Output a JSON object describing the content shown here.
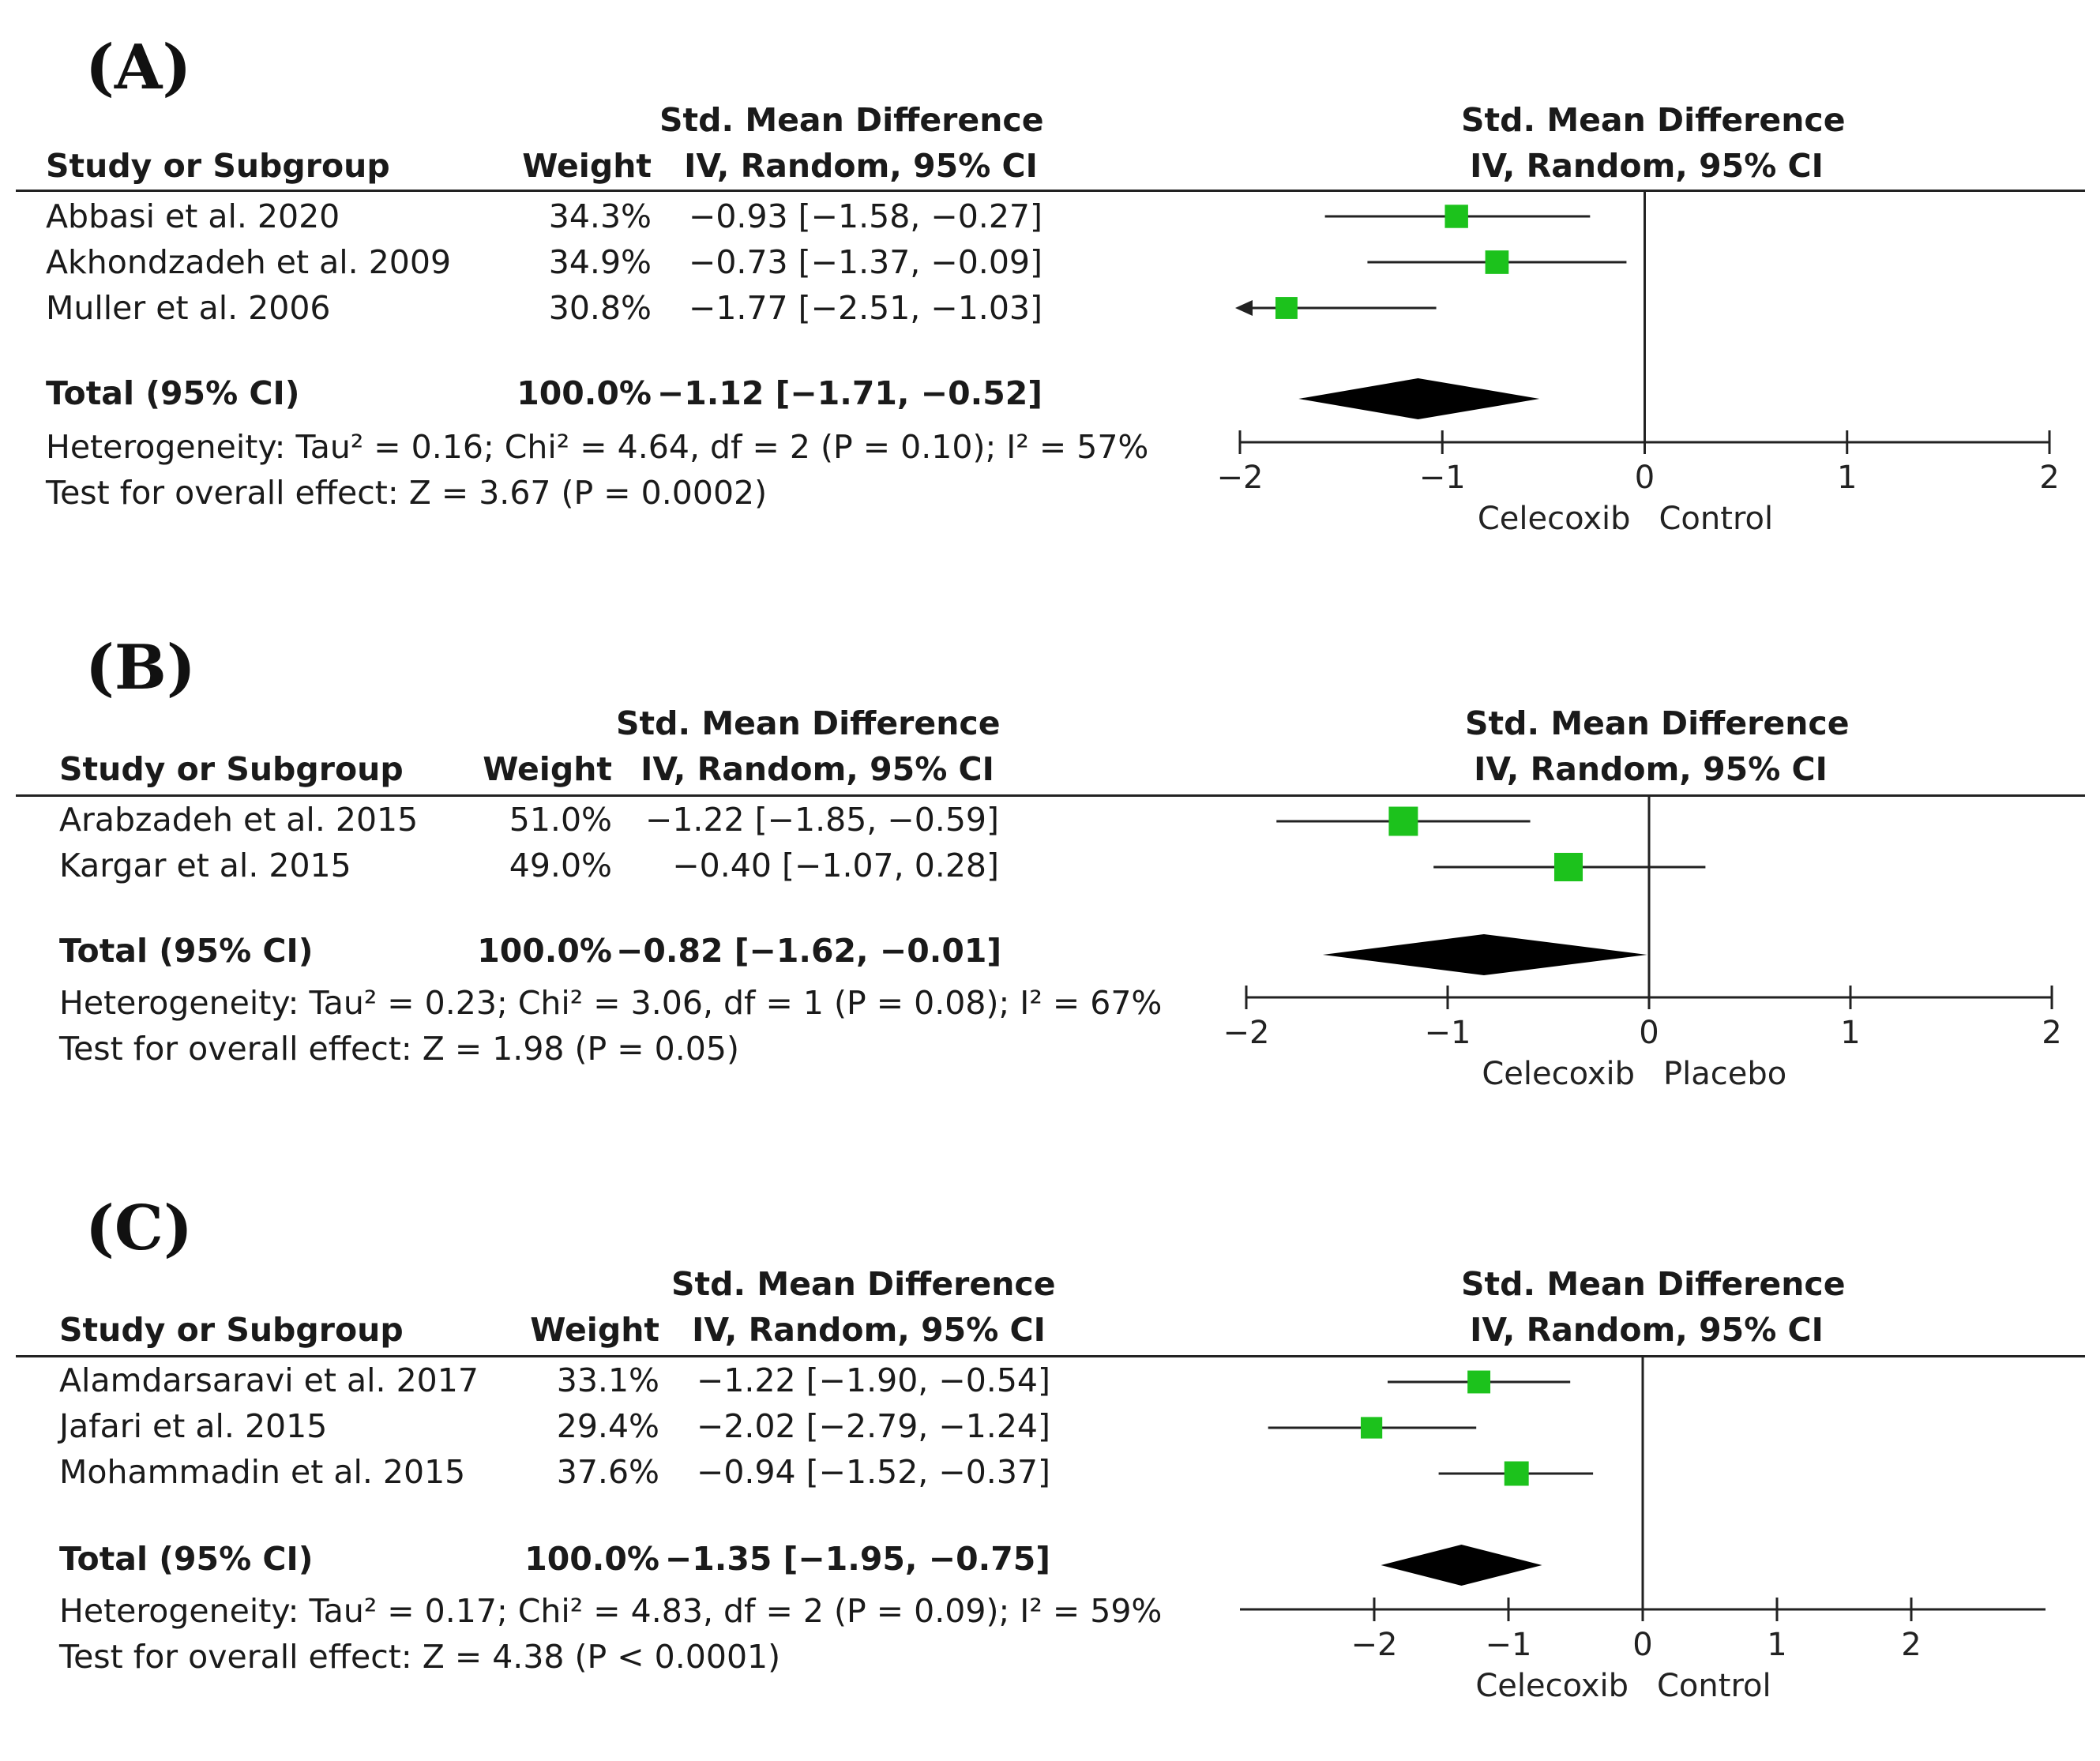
{
  "headers": {
    "study": "Study or Subgroup",
    "weight": "Weight",
    "smd_line1": "Std. Mean Difference",
    "smd_line2": "IV, Random, 95% CI"
  },
  "chart_data": [
    {
      "type": "forest",
      "panel_label": "(A)",
      "studies": [
        {
          "name": "Abbasi et al. 2020",
          "weight": "34.3%",
          "ci_text": "−0.93 [−1.58, −0.27]",
          "est": -0.93,
          "lo": -1.58,
          "hi": -0.27,
          "w": 34.3
        },
        {
          "name": "Akhondzadeh et al. 2009",
          "weight": "34.9%",
          "ci_text": "−0.73 [−1.37, −0.09]",
          "est": -0.73,
          "lo": -1.37,
          "hi": -0.09,
          "w": 34.9
        },
        {
          "name": "Muller et al. 2006",
          "weight": "30.8%",
          "ci_text": "−1.77 [−2.51, −1.03]",
          "est": -1.77,
          "lo": -2.51,
          "hi": -1.03,
          "w": 30.8
        }
      ],
      "total": {
        "label": "Total (95% CI)",
        "weight": "100.0%",
        "ci_text": "−1.12 [−1.71, −0.52]",
        "est": -1.12,
        "lo": -1.71,
        "hi": -0.52
      },
      "heterogeneity": "Heterogeneity: Tau² = 0.16; Chi² = 4.64, df = 2 (P = 0.10); I² = 57%",
      "overall": "Test for overall effect: Z = 3.67 (P = 0.0002)",
      "xlim": [
        -2,
        2
      ],
      "ticks": [
        -2,
        -1,
        0,
        1,
        2
      ],
      "tick_labels": [
        "−2",
        "−1",
        "0",
        "1",
        "2"
      ],
      "favours_left": "Celecoxib",
      "favours_right": "Control"
    },
    {
      "type": "forest",
      "panel_label": "(B)",
      "studies": [
        {
          "name": "Arabzadeh et al. 2015",
          "weight": "51.0%",
          "ci_text": "−1.22 [−1.85, −0.59]",
          "est": -1.22,
          "lo": -1.85,
          "hi": -0.59,
          "w": 51.0
        },
        {
          "name": "Kargar et al. 2015",
          "weight": "49.0%",
          "ci_text": "−0.40 [−1.07, 0.28]",
          "est": -0.4,
          "lo": -1.07,
          "hi": 0.28,
          "w": 49.0
        }
      ],
      "total": {
        "label": "Total (95% CI)",
        "weight": "100.0%",
        "ci_text": "−0.82 [−1.62, −0.01]",
        "est": -0.82,
        "lo": -1.62,
        "hi": -0.01
      },
      "heterogeneity": "Heterogeneity: Tau² = 0.23; Chi² = 3.06, df = 1 (P = 0.08); I² = 67%",
      "overall": "Test for overall effect: Z = 1.98 (P = 0.05)",
      "xlim": [
        -2,
        2
      ],
      "ticks": [
        -2,
        -1,
        0,
        1,
        2
      ],
      "tick_labels": [
        "−2",
        "−1",
        "0",
        "1",
        "2"
      ],
      "favours_left": "Celecoxib",
      "favours_right": "Placebo"
    },
    {
      "type": "forest",
      "panel_label": "(C)",
      "studies": [
        {
          "name": "Alamdarsaravi et al. 2017",
          "weight": "33.1%",
          "ci_text": "−1.22 [−1.90, −0.54]",
          "est": -1.22,
          "lo": -1.9,
          "hi": -0.54,
          "w": 33.1
        },
        {
          "name": "Jafari et al. 2015",
          "weight": "29.4%",
          "ci_text": "−2.02 [−2.79, −1.24]",
          "est": -2.02,
          "lo": -2.79,
          "hi": -1.24,
          "w": 29.4
        },
        {
          "name": "Mohammadin et al. 2015",
          "weight": "37.6%",
          "ci_text": "−0.94 [−1.52, −0.37]",
          "est": -0.94,
          "lo": -1.52,
          "hi": -0.37,
          "w": 37.6
        }
      ],
      "total": {
        "label": "Total (95% CI)",
        "weight": "100.0%",
        "ci_text": "−1.35 [−1.95, −0.75]",
        "est": -1.35,
        "lo": -1.95,
        "hi": -0.75
      },
      "heterogeneity": "Heterogeneity: Tau² = 0.17; Chi² = 4.83, df = 2 (P = 0.09); I² = 59%",
      "overall": "Test for overall effect: Z = 4.38 (P < 0.0001)",
      "xlim": [
        -3,
        3
      ],
      "ticks": [
        -2,
        -1,
        0,
        1,
        2
      ],
      "tick_labels": [
        "−2",
        "−1",
        "0",
        "1",
        "2"
      ],
      "favours_left": "Celecoxib",
      "favours_right": "Control"
    }
  ],
  "colors": {
    "square": "#1cc21c",
    "diamond": "#000000",
    "line": "#222222"
  }
}
